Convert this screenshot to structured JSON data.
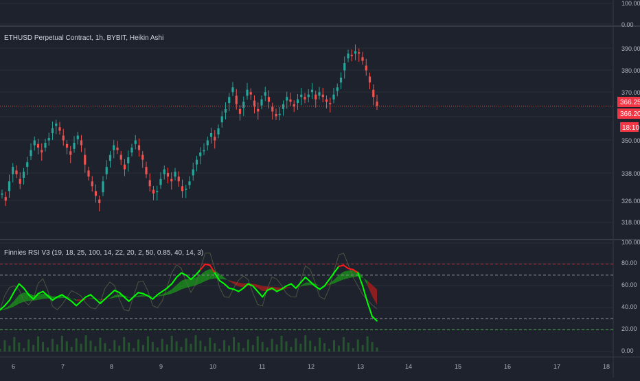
{
  "main_pane": {
    "title": "ETHUSD Perpetual Contract, 1h, BYBIT, Heikin Ashi",
    "price_labels": [
      "390.00",
      "380.00",
      "370.00",
      "350.00",
      "338.00",
      "326.00",
      "318.00"
    ],
    "current_price_badges": [
      "366.25",
      "366.20"
    ],
    "countdown_badge": "18:10"
  },
  "top_pane": {
    "price_labels": [
      "100.00",
      "0.00"
    ]
  },
  "rsi_pane": {
    "title": "Finnies RSI V3 (19, 18, 25, 100, 14, 22, 20, 2, 50, 0.85, 40, 14, 3)",
    "level_labels": [
      "100.00",
      "80.00",
      "60.00",
      "40.00",
      "20.00",
      "0.00"
    ]
  },
  "time_axis": {
    "labels": [
      "6",
      "7",
      "8",
      "9",
      "10",
      "11",
      "12",
      "13",
      "14",
      "15",
      "16",
      "17",
      "18"
    ]
  },
  "colors": {
    "background": "#1e222d",
    "grid": "#2a2e39",
    "up_candle": "#26a69a",
    "down_candle": "#ef5350",
    "rsi_line": "#00ff00",
    "rsi_line_hot": "#ff1a1a",
    "cloud_green": "#1b8a1b",
    "cloud_red": "#a11d1d",
    "axis_text": "#b2b5be",
    "badge_red": "#f23645"
  },
  "chart_data": {
    "type": "candlestick",
    "title": "ETHUSD Perpetual Contract, 1h, BYBIT, Heikin Ashi",
    "x_range": [
      5.9,
      18.3
    ],
    "ylim": [
      314,
      394
    ],
    "closes": [
      330,
      327,
      335,
      341,
      338,
      334,
      339,
      343,
      348,
      352,
      349,
      347,
      351,
      353,
      357,
      359,
      356,
      352,
      349,
      346,
      351,
      354,
      350,
      342,
      337,
      333,
      329,
      326,
      335,
      341,
      346,
      350,
      348,
      344,
      340,
      345,
      349,
      352,
      348,
      344,
      338,
      333,
      330,
      331,
      336,
      340,
      337,
      335,
      339,
      335,
      331,
      332,
      335,
      340,
      344,
      347,
      348,
      352,
      355,
      352,
      357,
      362,
      365,
      370,
      374,
      367,
      363,
      368,
      373,
      371,
      366,
      364,
      369,
      372,
      368,
      364,
      362,
      363,
      367,
      370,
      368,
      366,
      369,
      371,
      369,
      371,
      373,
      369,
      372,
      370,
      368,
      367,
      371,
      374,
      378,
      384,
      388,
      387,
      389,
      388,
      385,
      381,
      376,
      370,
      366.25
    ],
    "current_price": 366.25,
    "rsi": {
      "levels": [
        20,
        30,
        70,
        80
      ],
      "values": [
        38,
        42,
        47,
        55,
        62,
        58,
        52,
        48,
        53,
        55,
        51,
        47,
        50,
        52,
        49,
        46,
        42,
        46,
        50,
        52,
        48,
        44,
        48,
        52,
        56,
        54,
        50,
        46,
        50,
        54,
        53,
        51,
        48,
        52,
        55,
        58,
        62,
        68,
        72,
        70,
        66,
        70,
        75,
        80,
        79,
        72,
        65,
        62,
        58,
        57,
        55,
        58,
        62,
        60,
        55,
        50,
        56,
        58,
        55,
        57,
        60,
        62,
        58,
        63,
        68,
        64,
        60,
        57,
        60,
        66,
        72,
        78,
        79,
        76,
        75,
        72,
        60,
        45,
        32,
        28
      ]
    }
  }
}
